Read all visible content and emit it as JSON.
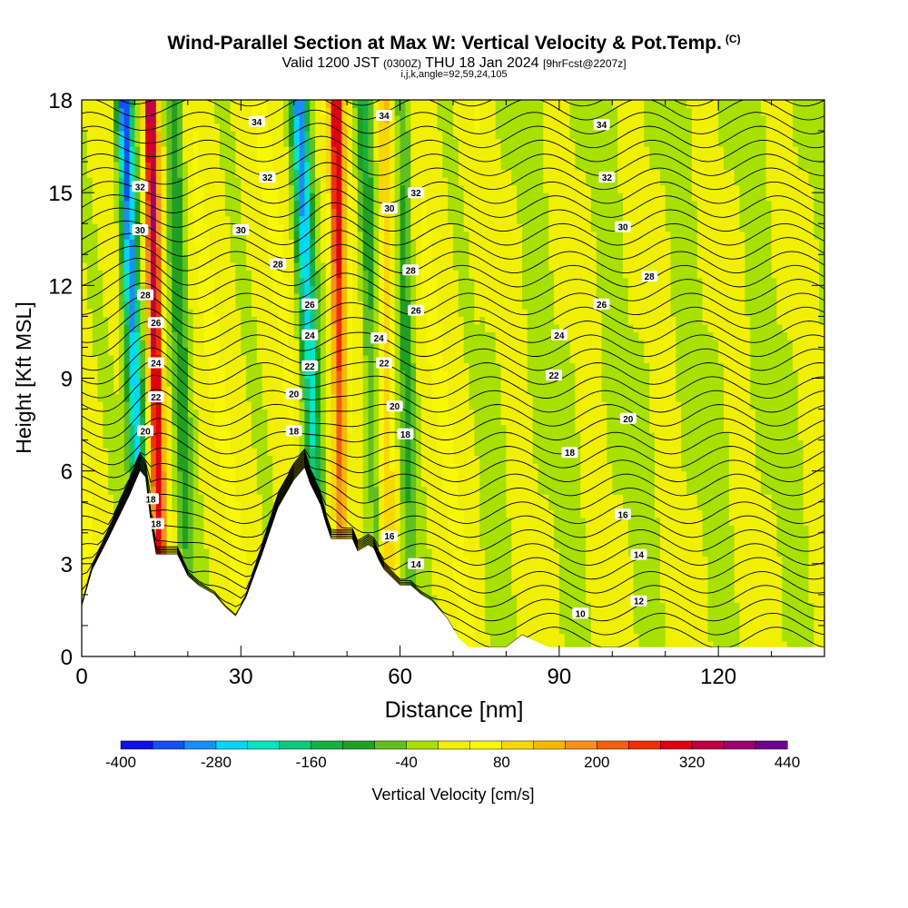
{
  "header": {
    "title": "Wind-Parallel Section at Max W: Vertical Velocity & Pot.Temp.",
    "copyright": "(C)",
    "valid_prefix": "Valid 1200 JST",
    "valid_utc": "(0300Z)",
    "valid_date": "THU 18 Jan 2024",
    "forecast": "[9hrFcst@2207z]",
    "indices": "i,j,k,angle=92,59,24,105"
  },
  "chart_data": {
    "type": "heatmap",
    "title": "Wind-Parallel Section at Max W: Vertical Velocity & Pot.Temp.",
    "xlabel": "Distance [nm]",
    "ylabel": "Height [Kft MSL]",
    "xlim": [
      0,
      140
    ],
    "ylim": [
      0,
      18
    ],
    "xticks": [
      "0",
      "30",
      "60",
      "90",
      "120"
    ],
    "yticks": [
      "0",
      "3",
      "6",
      "9",
      "12",
      "15",
      "18"
    ],
    "colorbar": {
      "label": "Vertical Velocity [cm/s]",
      "tick_labels": [
        "-400",
        "-280",
        "-160",
        "-40",
        "80",
        "200",
        "320",
        "440"
      ],
      "levels": [
        -400,
        -360,
        -320,
        -280,
        -240,
        -200,
        -160,
        -120,
        -80,
        -40,
        0,
        40,
        80,
        120,
        160,
        200,
        240,
        280,
        320,
        360,
        400,
        440
      ],
      "colors": [
        "#1010e8",
        "#1550f0",
        "#1b8ef5",
        "#00d8f8",
        "#00e8c0",
        "#10c878",
        "#18b040",
        "#20a020",
        "#60c020",
        "#a8e000",
        "#f0f000",
        "#f8f800",
        "#f8d800",
        "#f8b800",
        "#f89020",
        "#f06010",
        "#f03000",
        "#e00010",
        "#c00040",
        "#a00070",
        "#700090"
      ]
    },
    "field": {
      "background_cm_s": 20,
      "features": [
        {
          "kind": "down",
          "x_top": 8,
          "x_bot": 12,
          "peak_cm_s": -400
        },
        {
          "kind": "up",
          "x_top": 13,
          "x_bot": 15,
          "peak_cm_s": 400
        },
        {
          "kind": "down",
          "x_top": 17.5,
          "x_bot": 20,
          "peak_cm_s": -140
        },
        {
          "kind": "down",
          "x_top": 41,
          "x_bot": 45,
          "peak_cm_s": -320
        },
        {
          "kind": "up",
          "x_top": 48,
          "x_bot": 49,
          "peak_cm_s": 300
        },
        {
          "kind": "down",
          "x_top": 53,
          "x_bot": 56,
          "peak_cm_s": -140
        },
        {
          "kind": "up",
          "x_top": 57,
          "x_bot": 58,
          "peak_cm_s": 130
        },
        {
          "kind": "down",
          "x_top": 60.5,
          "x_bot": 62,
          "peak_cm_s": -120
        }
      ]
    },
    "contours": {
      "variable": "Potential Temperature",
      "levels_labeled": [
        "10",
        "12",
        "14",
        "16",
        "18",
        "20",
        "22",
        "24",
        "26",
        "28",
        "30",
        "32",
        "34"
      ],
      "labels": [
        {
          "text": "34",
          "x": 33,
          "y": 17.3
        },
        {
          "text": "34",
          "x": 57,
          "y": 17.5
        },
        {
          "text": "34",
          "x": 98,
          "y": 17.2
        },
        {
          "text": "32",
          "x": 35,
          "y": 15.5
        },
        {
          "text": "32",
          "x": 63,
          "y": 15.0
        },
        {
          "text": "32",
          "x": 99,
          "y": 15.5
        },
        {
          "text": "32",
          "x": 11,
          "y": 15.2
        },
        {
          "text": "30",
          "x": 30,
          "y": 13.8
        },
        {
          "text": "30",
          "x": 58,
          "y": 14.5
        },
        {
          "text": "30",
          "x": 102,
          "y": 13.9
        },
        {
          "text": "30",
          "x": 11,
          "y": 13.8
        },
        {
          "text": "28",
          "x": 37,
          "y": 12.7
        },
        {
          "text": "28",
          "x": 62,
          "y": 12.5
        },
        {
          "text": "28",
          "x": 107,
          "y": 12.3
        },
        {
          "text": "28",
          "x": 12,
          "y": 11.7
        },
        {
          "text": "26",
          "x": 63,
          "y": 11.2
        },
        {
          "text": "26",
          "x": 98,
          "y": 11.4
        },
        {
          "text": "26",
          "x": 43,
          "y": 11.4
        },
        {
          "text": "26",
          "x": 14,
          "y": 10.8
        },
        {
          "text": "24",
          "x": 56,
          "y": 10.3
        },
        {
          "text": "24",
          "x": 90,
          "y": 10.4
        },
        {
          "text": "24",
          "x": 43,
          "y": 10.4
        },
        {
          "text": "24",
          "x": 14,
          "y": 9.5
        },
        {
          "text": "22",
          "x": 57,
          "y": 9.5
        },
        {
          "text": "22",
          "x": 89,
          "y": 9.1
        },
        {
          "text": "22",
          "x": 43,
          "y": 9.4
        },
        {
          "text": "22",
          "x": 14,
          "y": 8.4
        },
        {
          "text": "20",
          "x": 40,
          "y": 8.5
        },
        {
          "text": "20",
          "x": 59,
          "y": 8.1
        },
        {
          "text": "20",
          "x": 103,
          "y": 7.7
        },
        {
          "text": "20",
          "x": 12,
          "y": 7.3
        },
        {
          "text": "18",
          "x": 40,
          "y": 7.3
        },
        {
          "text": "18",
          "x": 61,
          "y": 7.2
        },
        {
          "text": "18",
          "x": 92,
          "y": 6.6
        },
        {
          "text": "18",
          "x": 13,
          "y": 5.1
        },
        {
          "text": "18",
          "x": 14,
          "y": 4.3
        },
        {
          "text": "16",
          "x": 58,
          "y": 3.9
        },
        {
          "text": "16",
          "x": 102,
          "y": 4.6
        },
        {
          "text": "14",
          "x": 63,
          "y": 3.0
        },
        {
          "text": "14",
          "x": 105,
          "y": 3.3
        },
        {
          "text": "12",
          "x": 105,
          "y": 1.8
        },
        {
          "text": "10",
          "x": 94,
          "y": 1.4
        }
      ]
    },
    "terrain_kft": [
      [
        0,
        1.6
      ],
      [
        2,
        2.8
      ],
      [
        5,
        3.8
      ],
      [
        9,
        5.2
      ],
      [
        11,
        6.0
      ],
      [
        12,
        5.8
      ],
      [
        13,
        4.3
      ],
      [
        14,
        3.3
      ],
      [
        18,
        3.3
      ],
      [
        20,
        2.6
      ],
      [
        22,
        2.3
      ],
      [
        25,
        2.0
      ],
      [
        27,
        1.6
      ],
      [
        29,
        1.3
      ],
      [
        31,
        1.9
      ],
      [
        34,
        3.3
      ],
      [
        37,
        4.8
      ],
      [
        40,
        5.7
      ],
      [
        42,
        6.1
      ],
      [
        43,
        5.6
      ],
      [
        45,
        4.9
      ],
      [
        46,
        4.3
      ],
      [
        47,
        3.8
      ],
      [
        49,
        3.8
      ],
      [
        51,
        3.8
      ],
      [
        52,
        3.4
      ],
      [
        54,
        3.6
      ],
      [
        55,
        3.5
      ],
      [
        56,
        3.1
      ],
      [
        57,
        2.8
      ],
      [
        60,
        2.3
      ],
      [
        62,
        2.3
      ],
      [
        64,
        2.0
      ],
      [
        66,
        1.8
      ],
      [
        69,
        1.2
      ],
      [
        71,
        0.6
      ],
      [
        73,
        0.3
      ],
      [
        80,
        0.3
      ],
      [
        83,
        0.7
      ],
      [
        88,
        0.3
      ],
      [
        140,
        0.3
      ]
    ]
  }
}
